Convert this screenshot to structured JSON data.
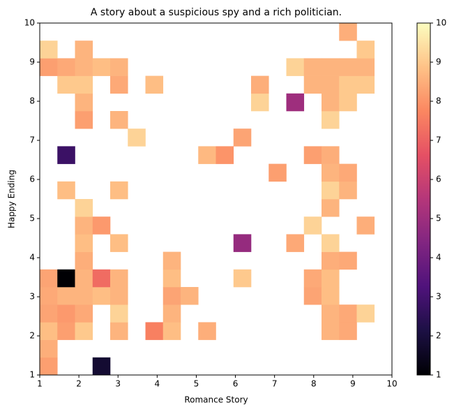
{
  "chart_data": {
    "type": "heatmap",
    "title": "A story about a suspicious spy and a rich politician.",
    "x_label": "Romance Story",
    "y_label": "Happy Ending",
    "xbins": [
      1,
      1.45,
      1.9,
      2.35,
      2.8,
      3.25,
      3.7,
      4.15,
      4.6,
      5.05,
      5.5,
      5.95,
      6.4,
      6.85,
      7.3,
      7.75,
      8.2,
      8.65,
      9.1,
      9.55,
      10
    ],
    "ybins": [
      1,
      1.45,
      1.9,
      2.35,
      2.8,
      3.25,
      3.7,
      4.15,
      4.6,
      5.05,
      5.5,
      5.95,
      6.4,
      6.85,
      7.3,
      7.75,
      8.2,
      8.65,
      9.1,
      9.55,
      10
    ],
    "z": [
      [
        8.2,
        null,
        null,
        1.8,
        null,
        null,
        null,
        null,
        null,
        null,
        null,
        null,
        null,
        null,
        null,
        null,
        null,
        null,
        null,
        null
      ],
      [
        8.5,
        null,
        null,
        null,
        null,
        null,
        null,
        null,
        null,
        null,
        null,
        null,
        null,
        null,
        null,
        null,
        null,
        null,
        null,
        null
      ],
      [
        8.8,
        8.2,
        9,
        null,
        8.6,
        null,
        7.6,
        8.8,
        null,
        8.5,
        null,
        null,
        null,
        null,
        null,
        null,
        8.6,
        8.4,
        null,
        null
      ],
      [
        8.3,
        8.1,
        8.4,
        null,
        9.2,
        null,
        null,
        8.6,
        null,
        null,
        null,
        null,
        null,
        null,
        null,
        null,
        8.6,
        8.4,
        9.2,
        null
      ],
      [
        8.4,
        8.6,
        8.6,
        8.8,
        8.6,
        null,
        null,
        8.3,
        8.6,
        null,
        null,
        null,
        null,
        null,
        null,
        8.3,
        8.8,
        null,
        null,
        null
      ],
      [
        8.3,
        1,
        8.6,
        7.2,
        8.6,
        null,
        null,
        8.8,
        null,
        null,
        null,
        9,
        null,
        null,
        null,
        8.4,
        8.8,
        null,
        null,
        null
      ],
      [
        null,
        null,
        8.5,
        null,
        null,
        null,
        null,
        8.6,
        null,
        null,
        null,
        null,
        null,
        null,
        null,
        null,
        8.5,
        8.4,
        null,
        null
      ],
      [
        null,
        null,
        8.8,
        null,
        8.8,
        null,
        null,
        null,
        null,
        null,
        null,
        4.8,
        null,
        null,
        8.4,
        null,
        9.2,
        null,
        null,
        null
      ],
      [
        null,
        null,
        8.6,
        8.1,
        null,
        null,
        null,
        null,
        null,
        null,
        null,
        null,
        null,
        null,
        null,
        9.2,
        null,
        null,
        8.5,
        null
      ],
      [
        null,
        null,
        9.2,
        null,
        null,
        null,
        null,
        null,
        null,
        null,
        null,
        null,
        null,
        null,
        null,
        null,
        8.6,
        null,
        null,
        null
      ],
      [
        null,
        8.8,
        null,
        null,
        8.8,
        null,
        null,
        null,
        null,
        null,
        null,
        null,
        null,
        null,
        null,
        null,
        9.2,
        8.6,
        null,
        null
      ],
      [
        null,
        null,
        null,
        null,
        null,
        null,
        null,
        null,
        null,
        null,
        null,
        null,
        null,
        8.2,
        null,
        null,
        8.6,
        8.4,
        null,
        null
      ],
      [
        null,
        2.8,
        null,
        null,
        null,
        null,
        null,
        null,
        null,
        8.7,
        8,
        null,
        null,
        null,
        null,
        8.2,
        8.5,
        null,
        null,
        null
      ],
      [
        null,
        null,
        null,
        null,
        null,
        9.2,
        null,
        null,
        null,
        null,
        null,
        8.3,
        null,
        null,
        null,
        null,
        null,
        null,
        null,
        null
      ],
      [
        null,
        null,
        8.2,
        null,
        8.6,
        null,
        null,
        null,
        null,
        null,
        null,
        null,
        null,
        null,
        null,
        null,
        9.2,
        null,
        null,
        null
      ],
      [
        null,
        null,
        8.6,
        null,
        null,
        null,
        null,
        null,
        null,
        null,
        null,
        null,
        9.2,
        null,
        5,
        null,
        8.6,
        9,
        null,
        null
      ],
      [
        null,
        9,
        9,
        null,
        8.4,
        null,
        8.8,
        null,
        null,
        null,
        null,
        null,
        8.5,
        null,
        null,
        8.6,
        8.6,
        9,
        9,
        null
      ],
      [
        8.2,
        8.4,
        8.6,
        8.8,
        8.6,
        null,
        null,
        null,
        null,
        null,
        null,
        null,
        null,
        null,
        9.2,
        8.6,
        8.6,
        8.6,
        8.6,
        null
      ],
      [
        9.2,
        null,
        8.6,
        null,
        null,
        null,
        null,
        null,
        null,
        null,
        null,
        null,
        null,
        null,
        null,
        null,
        null,
        null,
        9,
        null
      ],
      [
        null,
        null,
        null,
        null,
        null,
        null,
        null,
        null,
        null,
        null,
        null,
        null,
        null,
        null,
        null,
        null,
        null,
        8.5,
        null,
        null
      ]
    ],
    "colormap": "magma",
    "xlim": [
      1,
      10
    ],
    "xticks": [
      1,
      2,
      3,
      4,
      5,
      6,
      7,
      8,
      9,
      10
    ],
    "ylim": [
      1,
      10
    ],
    "yticks": [
      1,
      2,
      3,
      4,
      5,
      6,
      7,
      8,
      9,
      10
    ],
    "clim": [
      1,
      10
    ],
    "cticks": [
      1,
      2,
      3,
      4,
      5,
      6,
      7,
      8,
      9,
      10
    ]
  }
}
